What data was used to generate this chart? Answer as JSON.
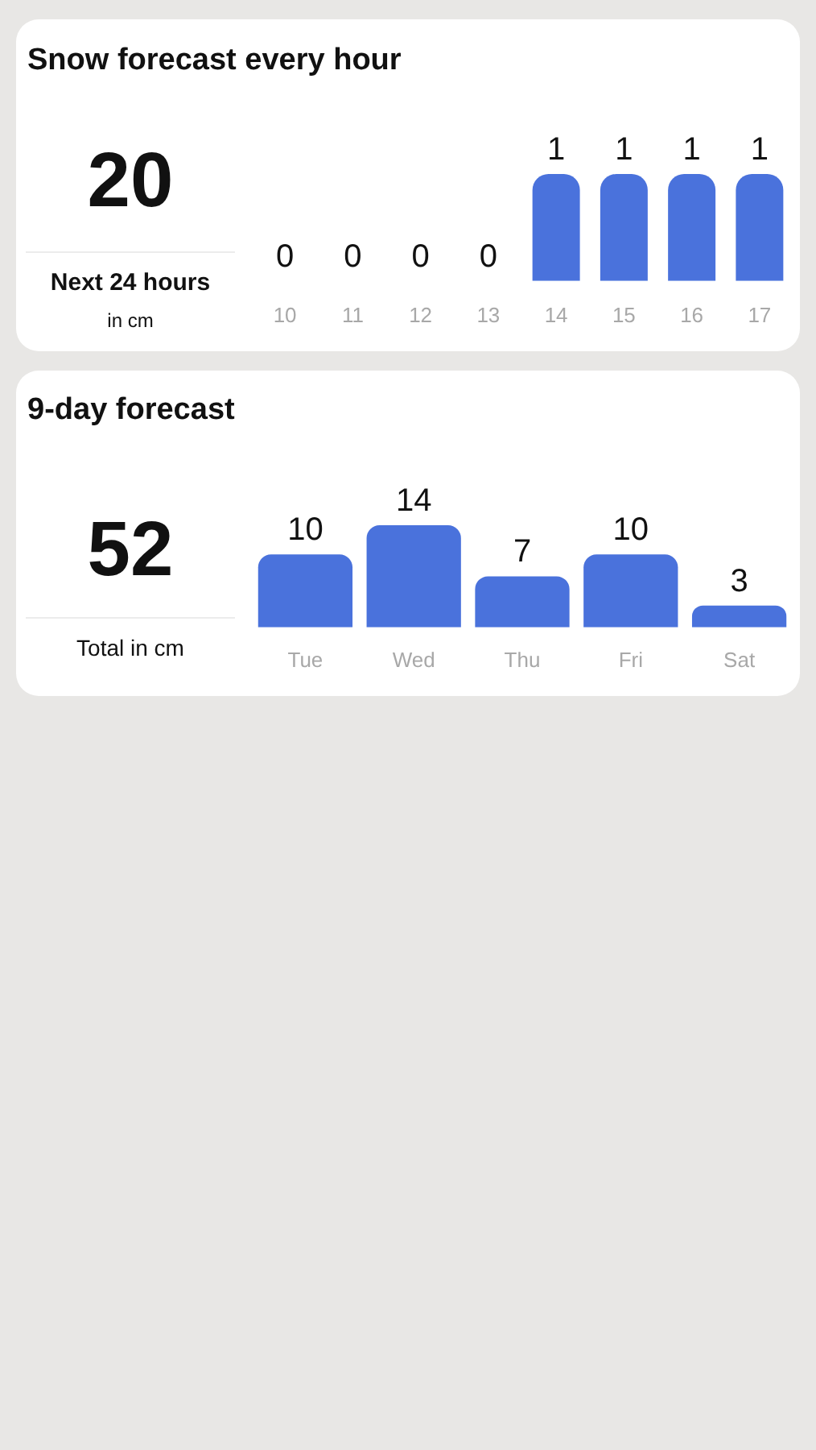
{
  "chart_data": [
    {
      "type": "bar",
      "title": "Snow forecast every hour",
      "categories": [
        "10",
        "11",
        "12",
        "13",
        "14",
        "15",
        "16",
        "17"
      ],
      "values": [
        0,
        0,
        0,
        0,
        1,
        1,
        1,
        1
      ],
      "color": "#4a72dc",
      "data_labels": true,
      "annotations": [
        "20",
        "Next 24 hours",
        "in cm"
      ]
    },
    {
      "type": "bar",
      "title": "9-day forecast",
      "categories": [
        "Tue",
        "Wed",
        "Thu",
        "Fri",
        "Sat"
      ],
      "values": [
        10,
        14,
        7,
        10,
        3
      ],
      "color": "#4a72dc",
      "data_labels": true,
      "annotations": [
        "52",
        "Total in cm"
      ]
    }
  ]
}
